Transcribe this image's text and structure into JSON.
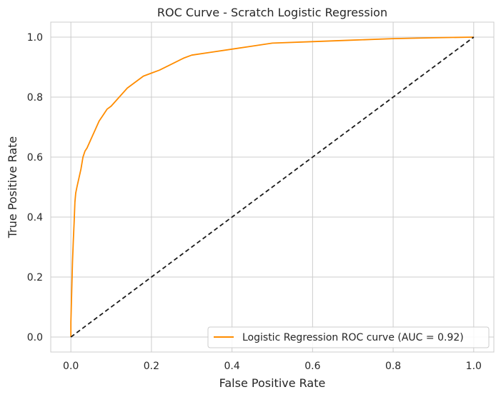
{
  "chart_data": {
    "type": "line",
    "title": "ROC Curve - Scratch Logistic Regression",
    "xlabel": "False Positive Rate",
    "ylabel": "True Positive Rate",
    "xlim": [
      -0.05,
      1.05
    ],
    "ylim": [
      -0.05,
      1.05
    ],
    "xticks": [
      0.0,
      0.2,
      0.4,
      0.6,
      0.8,
      1.0
    ],
    "yticks": [
      0.0,
      0.2,
      0.4,
      0.6,
      0.8,
      1.0
    ],
    "xtick_labels": [
      "0.0",
      "0.2",
      "0.4",
      "0.6",
      "0.8",
      "1.0"
    ],
    "ytick_labels": [
      "0.0",
      "0.2",
      "0.4",
      "0.6",
      "0.8",
      "1.0"
    ],
    "grid": true,
    "legend_position": "lower-right",
    "series": [
      {
        "name": "Logistic Regression ROC curve (AUC = 0.92)",
        "color": "#ff8c00",
        "style": "solid",
        "x": [
          0.0,
          0.0,
          0.002,
          0.004,
          0.006,
          0.008,
          0.01,
          0.012,
          0.015,
          0.02,
          0.025,
          0.03,
          0.035,
          0.04,
          0.05,
          0.06,
          0.07,
          0.08,
          0.09,
          0.1,
          0.12,
          0.14,
          0.16,
          0.18,
          0.2,
          0.22,
          0.25,
          0.28,
          0.3,
          0.35,
          0.4,
          0.45,
          0.5,
          0.6,
          0.7,
          0.8,
          0.9,
          1.0
        ],
        "y": [
          0.0,
          0.05,
          0.15,
          0.25,
          0.32,
          0.38,
          0.45,
          0.48,
          0.5,
          0.53,
          0.56,
          0.6,
          0.62,
          0.63,
          0.66,
          0.69,
          0.72,
          0.74,
          0.76,
          0.77,
          0.8,
          0.83,
          0.85,
          0.87,
          0.88,
          0.89,
          0.91,
          0.93,
          0.94,
          0.95,
          0.96,
          0.97,
          0.98,
          0.985,
          0.99,
          0.995,
          0.998,
          1.0
        ]
      },
      {
        "name": "",
        "color": "#1a1a1a",
        "style": "dashed",
        "x": [
          0.0,
          1.0
        ],
        "y": [
          0.0,
          1.0
        ]
      }
    ]
  }
}
